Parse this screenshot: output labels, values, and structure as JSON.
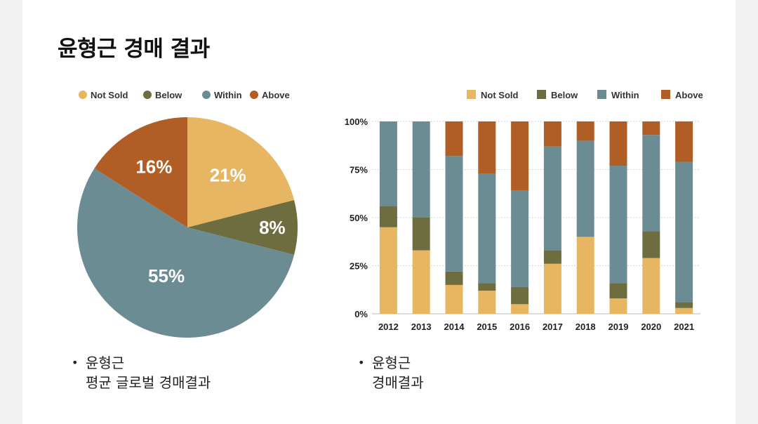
{
  "title": "윤형근 경매 결과",
  "colors": {
    "not_sold": "#E6B663",
    "below": "#6E6D3F",
    "within": "#6C8C94",
    "above": "#B05E25"
  },
  "chart_data": [
    {
      "type": "pie",
      "legend": [
        "Not Sold",
        "Below",
        "Within",
        "Above"
      ],
      "slices": [
        {
          "name": "Not Sold",
          "value": 21,
          "label": "21%",
          "color": "#E6B663"
        },
        {
          "name": "Below",
          "value": 8,
          "label": "8%",
          "color": "#6E6D3F"
        },
        {
          "name": "Within",
          "value": 55,
          "label": "55%",
          "color": "#6C8C94"
        },
        {
          "name": "Above",
          "value": 16,
          "label": "16%",
          "color": "#B05E25"
        }
      ],
      "caption": {
        "line1": "윤형근",
        "line2": "평균 글로벌 경매결과"
      }
    },
    {
      "type": "bar",
      "stacked": true,
      "categories": [
        "2012",
        "2013",
        "2014",
        "2015",
        "2016",
        "2017",
        "2018",
        "2019",
        "2020",
        "2021"
      ],
      "series": [
        {
          "name": "Not Sold",
          "color": "#E6B663",
          "values": [
            45,
            33,
            15,
            12,
            5,
            26,
            40,
            8,
            29,
            3
          ]
        },
        {
          "name": "Below",
          "color": "#6E6D3F",
          "values": [
            11,
            17,
            7,
            4,
            9,
            7,
            0,
            8,
            14,
            3
          ]
        },
        {
          "name": "Within",
          "color": "#6C8C94",
          "values": [
            44,
            50,
            60,
            57,
            50,
            54,
            50,
            61,
            50,
            73
          ]
        },
        {
          "name": "Above",
          "color": "#B05E25",
          "values": [
            0,
            0,
            18,
            27,
            36,
            13,
            10,
            23,
            7,
            21
          ]
        }
      ],
      "ylim": [
        0,
        100
      ],
      "yticks": [
        "0%",
        "25%",
        "50%",
        "75%",
        "100%"
      ],
      "caption": {
        "line1": "윤형근",
        "line2": "경매결과"
      }
    }
  ]
}
